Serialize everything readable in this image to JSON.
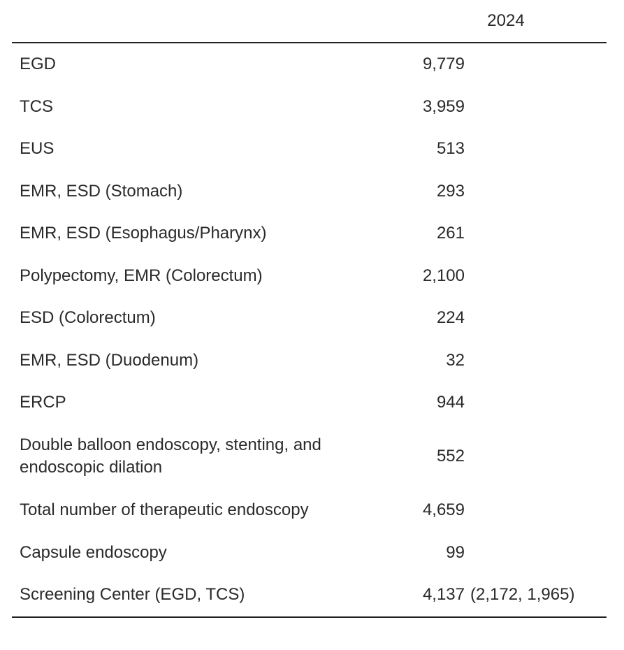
{
  "table": {
    "title_hidden": "",
    "column_header": "2024",
    "rows": [
      {
        "label": "EGD",
        "value": "9,779",
        "extra": ""
      },
      {
        "label": "TCS",
        "value": "3,959",
        "extra": ""
      },
      {
        "label": "EUS",
        "value": "513",
        "extra": ""
      },
      {
        "label": "EMR, ESD (Stomach)",
        "value": "293",
        "extra": ""
      },
      {
        "label": "EMR, ESD (Esophagus/Pharynx)",
        "value": "261",
        "extra": ""
      },
      {
        "label": "Polypectomy, EMR (Colorectum)",
        "value": "2,100",
        "extra": ""
      },
      {
        "label": "ESD (Colorectum)",
        "value": "224",
        "extra": ""
      },
      {
        "label": "EMR, ESD (Duodenum)",
        "value": "32",
        "extra": ""
      },
      {
        "label": "ERCP",
        "value": "944",
        "extra": ""
      },
      {
        "label": "Double balloon endoscopy, stenting, and endoscopic dilation",
        "value": "552",
        "extra": ""
      },
      {
        "label": "Total number of therapeutic endoscopy",
        "value": "4,659",
        "extra": ""
      },
      {
        "label": "Capsule endoscopy",
        "value": "99",
        "extra": ""
      },
      {
        "label": "Screening Center (EGD, TCS)",
        "value": "4,137",
        "extra": "(2,172, 1,965)"
      }
    ],
    "colors": {
      "text": "#2a2a2a",
      "rule": "#222222",
      "background": "#ffffff"
    }
  }
}
